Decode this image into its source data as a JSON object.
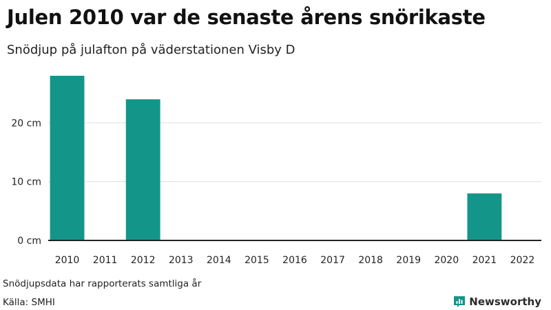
{
  "title": "Julen 2010 var de senaste årens snörikaste",
  "subtitle": "Snödjup på julafton på väderstationen Visby D",
  "note": "Snödjupsdata har rapporterats samtliga år",
  "source": "Källa: SMHI",
  "brand": "Newsworthy",
  "colors": {
    "bar": "#14958a",
    "grid": "#dddddd",
    "axis": "#222222",
    "brand_icon": "#14958a"
  },
  "chart_data": {
    "type": "bar",
    "categories": [
      "2010",
      "2011",
      "2012",
      "2013",
      "2014",
      "2015",
      "2016",
      "2017",
      "2018",
      "2019",
      "2020",
      "2021",
      "2022"
    ],
    "values": [
      28,
      0,
      24,
      0,
      0,
      0,
      0,
      0,
      0,
      0,
      0,
      8,
      0
    ],
    "ylim": [
      0,
      28
    ],
    "yticks": [
      0,
      10,
      20
    ],
    "ytick_labels": [
      "0 cm",
      "10 cm",
      "20 cm"
    ],
    "grid": true
  }
}
